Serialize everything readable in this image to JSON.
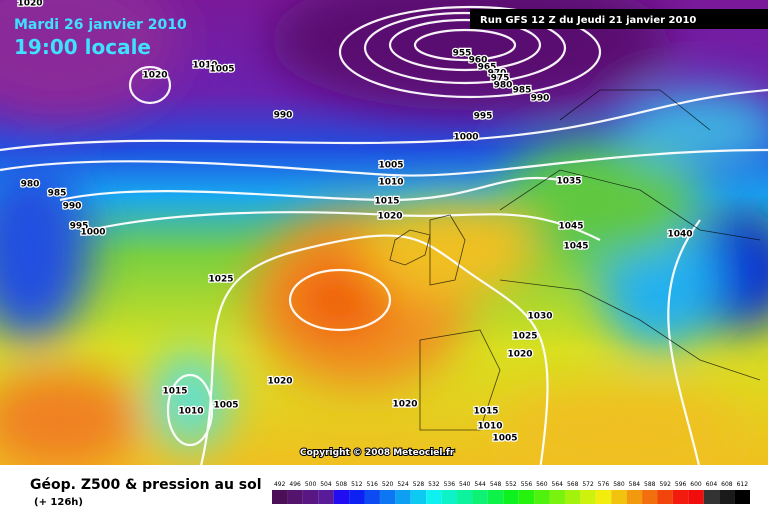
{
  "header": {
    "date": "Mardi 26 janvier 2010",
    "time": "19:00 locale",
    "run": "Run GFS 12 Z du Jeudi 21 janvier 2010"
  },
  "footer": {
    "title": "Géop. Z500 & pression au sol",
    "lead": "(+ 126h)",
    "copyright": "Copyright © 2008 Meteociel.fr"
  },
  "scale": [
    "492",
    "496",
    "500",
    "504",
    "508",
    "512",
    "516",
    "520",
    "524",
    "528",
    "532",
    "536",
    "540",
    "544",
    "548",
    "552",
    "556",
    "560",
    "564",
    "568",
    "572",
    "576",
    "580",
    "584",
    "588",
    "592",
    "596",
    "600",
    "604",
    "608",
    "612"
  ],
  "isobar_labels": [
    "1020",
    "1020",
    "1010",
    "1005",
    "990",
    "955",
    "960",
    "965",
    "970",
    "975",
    "980",
    "985",
    "990",
    "995",
    "1000",
    "1005",
    "1010",
    "1015",
    "1020",
    "980",
    "985",
    "990",
    "995",
    "1000",
    "1025",
    "1020",
    "1015",
    "1010",
    "1005",
    "1035",
    "1045",
    "1045",
    "1040",
    "1030",
    "1025",
    "1020",
    "1020",
    "1015",
    "1010",
    "1005"
  ]
}
